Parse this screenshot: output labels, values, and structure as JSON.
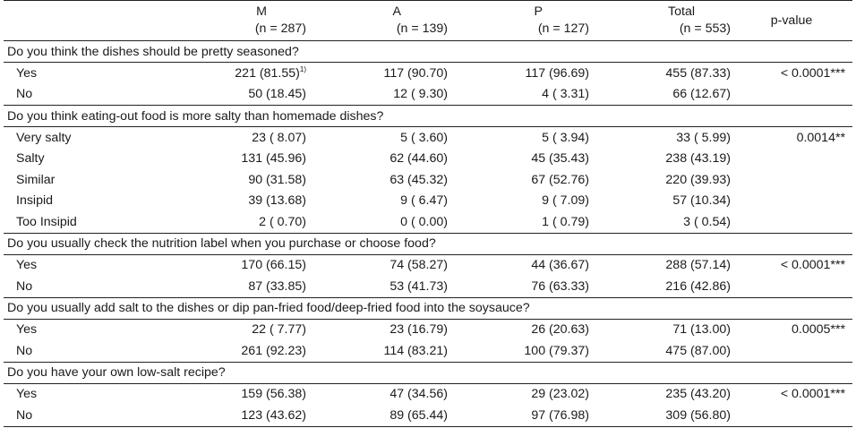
{
  "headers": {
    "m": {
      "label": "M",
      "n": "(n = 287)"
    },
    "a": {
      "label": "A",
      "n": "(n = 139)"
    },
    "p": {
      "label": "P",
      "n": "(n = 127)"
    },
    "total": {
      "label": "Total",
      "n": "(n = 553)"
    },
    "pvalue": "p-value"
  },
  "sections": [
    {
      "question": "Do you think the dishes should be pretty seasoned?",
      "rows": [
        {
          "label": "Yes",
          "m": "221 (81.55)",
          "m_sup": "1)",
          "a": "117 (90.70)",
          "p": "117 (96.69)",
          "total": "455 (87.33)",
          "pvalue": "< 0.0001***"
        },
        {
          "label": "No",
          "m": "50 (18.45)",
          "a": "12 ( 9.30)",
          "p": "4 ( 3.31)",
          "total": "66 (12.67)",
          "pvalue": ""
        }
      ]
    },
    {
      "question": "Do you think eating-out food is more salty than homemade dishes?",
      "rows": [
        {
          "label": "Very salty",
          "m": "23 ( 8.07)",
          "a": "5 ( 3.60)",
          "p": "5 ( 3.94)",
          "total": "33 ( 5.99)",
          "pvalue": "0.0014**"
        },
        {
          "label": "Salty",
          "m": "131 (45.96)",
          "a": "62 (44.60)",
          "p": "45 (35.43)",
          "total": "238 (43.19)",
          "pvalue": ""
        },
        {
          "label": "Similar",
          "m": "90 (31.58)",
          "a": "63 (45.32)",
          "p": "67 (52.76)",
          "total": "220 (39.93)",
          "pvalue": ""
        },
        {
          "label": "Insipid",
          "m": "39 (13.68)",
          "a": "9 ( 6.47)",
          "p": "9 ( 7.09)",
          "total": "57 (10.34)",
          "pvalue": ""
        },
        {
          "label": "Too Insipid",
          "m": "2 ( 0.70)",
          "a": "0 ( 0.00)",
          "p": "1 ( 0.79)",
          "total": "3 ( 0.54)",
          "pvalue": ""
        }
      ]
    },
    {
      "question": "Do you usually check the nutrition label when you purchase or choose food?",
      "rows": [
        {
          "label": "Yes",
          "m": "170 (66.15)",
          "a": "74 (58.27)",
          "p": "44 (36.67)",
          "total": "288 (57.14)",
          "pvalue": "< 0.0001***"
        },
        {
          "label": "No",
          "m": "87 (33.85)",
          "a": "53 (41.73)",
          "p": "76 (63.33)",
          "total": "216 (42.86)",
          "pvalue": ""
        }
      ]
    },
    {
      "question": "Do you usually add salt to the dishes or dip pan-fried food/deep-fried food into the soysauce?",
      "rows": [
        {
          "label": "Yes",
          "m": "22 ( 7.77)",
          "a": "23 (16.79)",
          "p": "26 (20.63)",
          "total": "71 (13.00)",
          "pvalue": "0.0005***"
        },
        {
          "label": "No",
          "m": "261 (92.23)",
          "a": "114 (83.21)",
          "p": "100 (79.37)",
          "total": "475 (87.00)",
          "pvalue": ""
        }
      ]
    },
    {
      "question": "Do you have your own low-salt recipe?",
      "rows": [
        {
          "label": "Yes",
          "m": "159 (56.38)",
          "a": "47 (34.56)",
          "p": "29 (23.02)",
          "total": "235 (43.20)",
          "pvalue": "< 0.0001***"
        },
        {
          "label": "No",
          "m": "123 (43.62)",
          "a": "89 (65.44)",
          "p": "97 (76.98)",
          "total": "309 (56.80)",
          "pvalue": ""
        }
      ]
    }
  ]
}
